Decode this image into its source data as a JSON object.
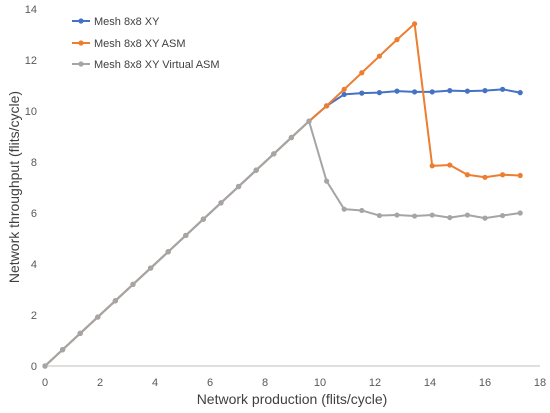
{
  "chart_data": {
    "type": "line",
    "xlabel": "Network production (flits/cycle)",
    "ylabel": "Network throughput (flits/cycle)",
    "xlim": [
      0,
      18
    ],
    "ylim": [
      0,
      14
    ],
    "xticks": [
      0,
      2,
      4,
      6,
      8,
      10,
      12,
      14,
      16,
      18
    ],
    "yticks": [
      0,
      2,
      4,
      6,
      8,
      10,
      12,
      14
    ],
    "grid": false,
    "legend": "top-left",
    "markers": "circle",
    "x": [
      0,
      0.64,
      1.28,
      1.92,
      2.56,
      3.2,
      3.84,
      4.48,
      5.12,
      5.76,
      6.4,
      7.04,
      7.68,
      8.32,
      8.96,
      9.6,
      10.24,
      10.88,
      11.52,
      12.16,
      12.8,
      13.44,
      14.08,
      14.72,
      15.36,
      16.0,
      16.64,
      17.28
    ],
    "series": [
      {
        "name": "Mesh 8x8 XY",
        "color": "#4472C4",
        "values": [
          0,
          0.64,
          1.28,
          1.92,
          2.56,
          3.2,
          3.84,
          4.48,
          5.12,
          5.76,
          6.4,
          7.04,
          7.68,
          8.32,
          8.96,
          9.6,
          10.2,
          10.65,
          10.7,
          10.72,
          10.78,
          10.75,
          10.75,
          10.8,
          10.78,
          10.8,
          10.85,
          10.72
        ]
      },
      {
        "name": "Mesh 8x8 XY ASM",
        "color": "#ED7D31",
        "values": [
          0,
          0.64,
          1.28,
          1.92,
          2.56,
          3.2,
          3.84,
          4.48,
          5.12,
          5.76,
          6.4,
          7.04,
          7.68,
          8.32,
          8.96,
          9.6,
          10.2,
          10.85,
          11.5,
          12.15,
          12.8,
          13.42,
          7.85,
          7.88,
          7.5,
          7.4,
          7.5,
          7.47
        ]
      },
      {
        "name": "Mesh 8x8 XY Virtual ASM",
        "color": "#A5A5A5",
        "values": [
          0,
          0.64,
          1.28,
          1.92,
          2.56,
          3.2,
          3.84,
          4.48,
          5.12,
          5.76,
          6.4,
          7.04,
          7.68,
          8.32,
          8.96,
          9.6,
          7.25,
          6.15,
          6.1,
          5.9,
          5.92,
          5.88,
          5.92,
          5.82,
          5.92,
          5.8,
          5.9,
          6.0
        ]
      }
    ]
  }
}
